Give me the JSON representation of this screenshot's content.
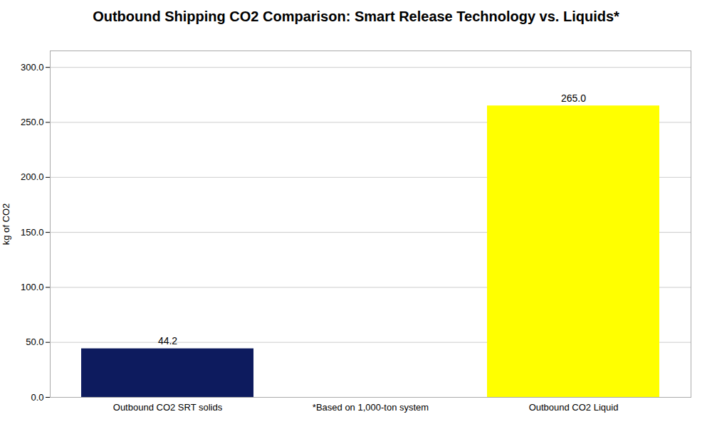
{
  "chart_data": {
    "type": "bar",
    "title": "Outbound Shipping CO2 Comparison: Smart Release Technology vs. Liquids*",
    "categories": [
      "Outbound CO2 SRT solids",
      "*Based on 1,000-ton system",
      "Outbound CO2 Liquid"
    ],
    "values": [
      44.2,
      null,
      265.0
    ],
    "value_labels": [
      "44.2",
      null,
      "265.0"
    ],
    "colors": [
      "#0d1b5e",
      null,
      "#ffff00"
    ],
    "ylabel": "kg of CO2",
    "ylim": [
      0,
      315
    ],
    "yticks": [
      {
        "value": 0,
        "label": "0.0"
      },
      {
        "value": 50,
        "label": "50.0"
      },
      {
        "value": 100,
        "label": "100.0"
      },
      {
        "value": 150,
        "label": "150.0"
      },
      {
        "value": 200,
        "label": "200.0"
      },
      {
        "value": 250,
        "label": "250.0"
      },
      {
        "value": 300,
        "label": "300.0"
      }
    ],
    "grid": true,
    "data_labels": true
  }
}
